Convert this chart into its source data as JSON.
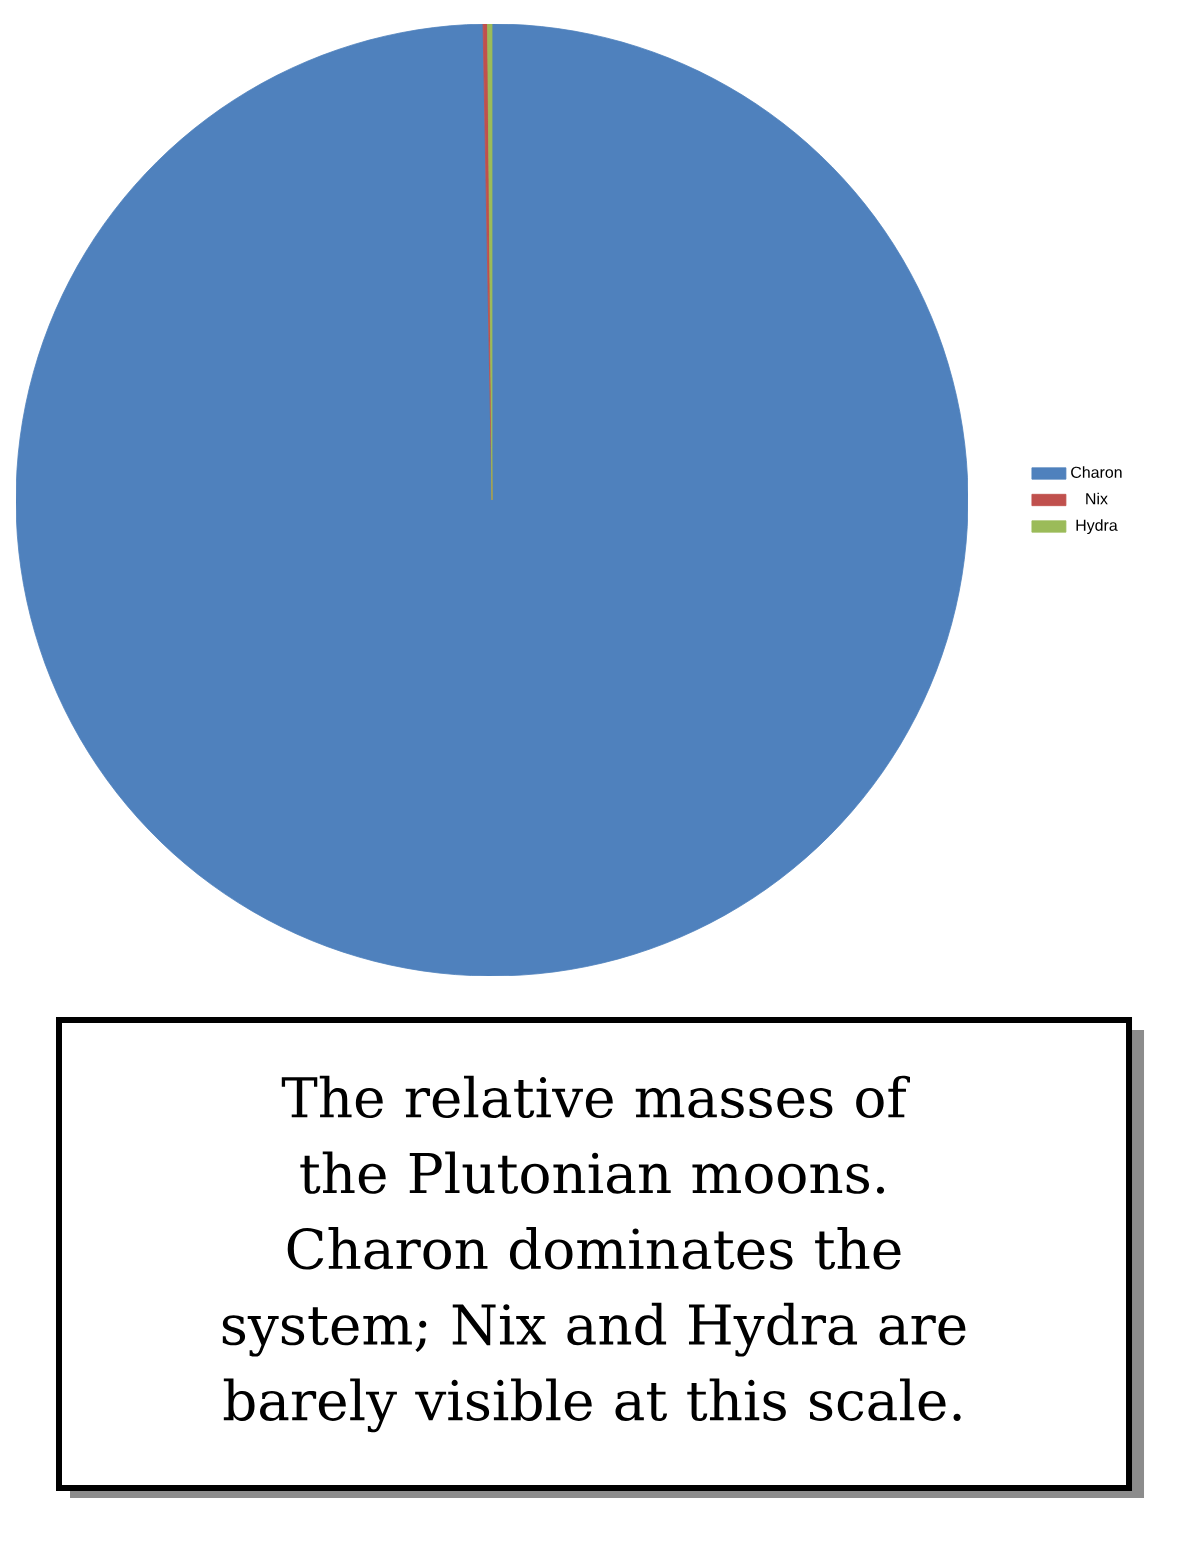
{
  "chart_data": {
    "type": "pie",
    "categories": [
      "Charon",
      "Nix",
      "Hydra"
    ],
    "values": [
      99.7,
      0.15,
      0.15
    ],
    "colors": [
      "#4f81bd",
      "#c0504d",
      "#9bbb59"
    ],
    "legend": "right",
    "annotations": [
      "The relative masses of the Plutonian moons. Charon dominates the system; Nix and Hydra are barely visible at this scale."
    ]
  }
}
